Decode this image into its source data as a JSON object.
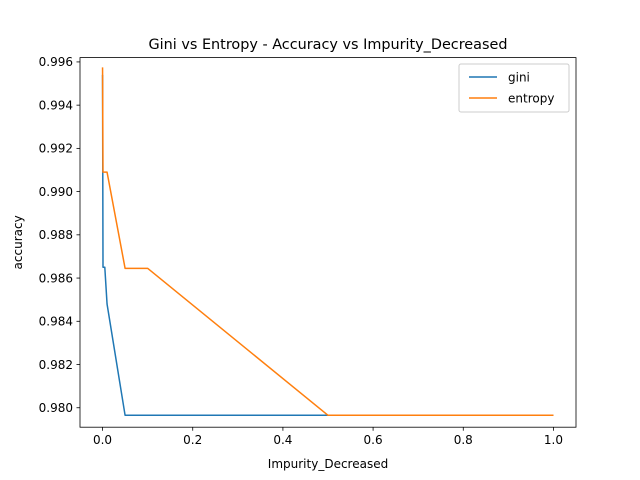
{
  "chart_data": {
    "type": "line",
    "title": "Gini vs Entropy - Accuracy vs Impurity_Decreased",
    "xlabel": "Impurity_Decreased",
    "ylabel": "accuracy",
    "xlim": [
      -0.05,
      1.05
    ],
    "ylim": [
      0.9791,
      0.9962
    ],
    "xticks": [
      0.0,
      0.2,
      0.4,
      0.6,
      0.8,
      1.0
    ],
    "xtick_labels": [
      "0.0",
      "0.2",
      "0.4",
      "0.6",
      "0.8",
      "1.0"
    ],
    "yticks": [
      0.98,
      0.982,
      0.984,
      0.986,
      0.988,
      0.99,
      0.992,
      0.994,
      0.996
    ],
    "ytick_labels": [
      "0.980",
      "0.982",
      "0.984",
      "0.986",
      "0.988",
      "0.990",
      "0.992",
      "0.994",
      "0.996"
    ],
    "grid": false,
    "legend_position": "top-right",
    "series": [
      {
        "name": "gini",
        "color": "#1f77b4",
        "x": [
          0.0,
          0.001,
          0.005,
          0.01,
          0.05,
          0.1,
          0.5,
          1.0
        ],
        "y": [
          0.9954,
          0.9865,
          0.9865,
          0.9848,
          0.97965,
          0.97965,
          0.97965,
          0.97965
        ]
      },
      {
        "name": "entropy",
        "color": "#ff7f0e",
        "x": [
          0.0,
          0.001,
          0.005,
          0.01,
          0.05,
          0.1,
          0.5,
          1.0
        ],
        "y": [
          0.99575,
          0.9909,
          0.9909,
          0.9909,
          0.98645,
          0.98645,
          0.97965,
          0.97965
        ]
      }
    ]
  }
}
